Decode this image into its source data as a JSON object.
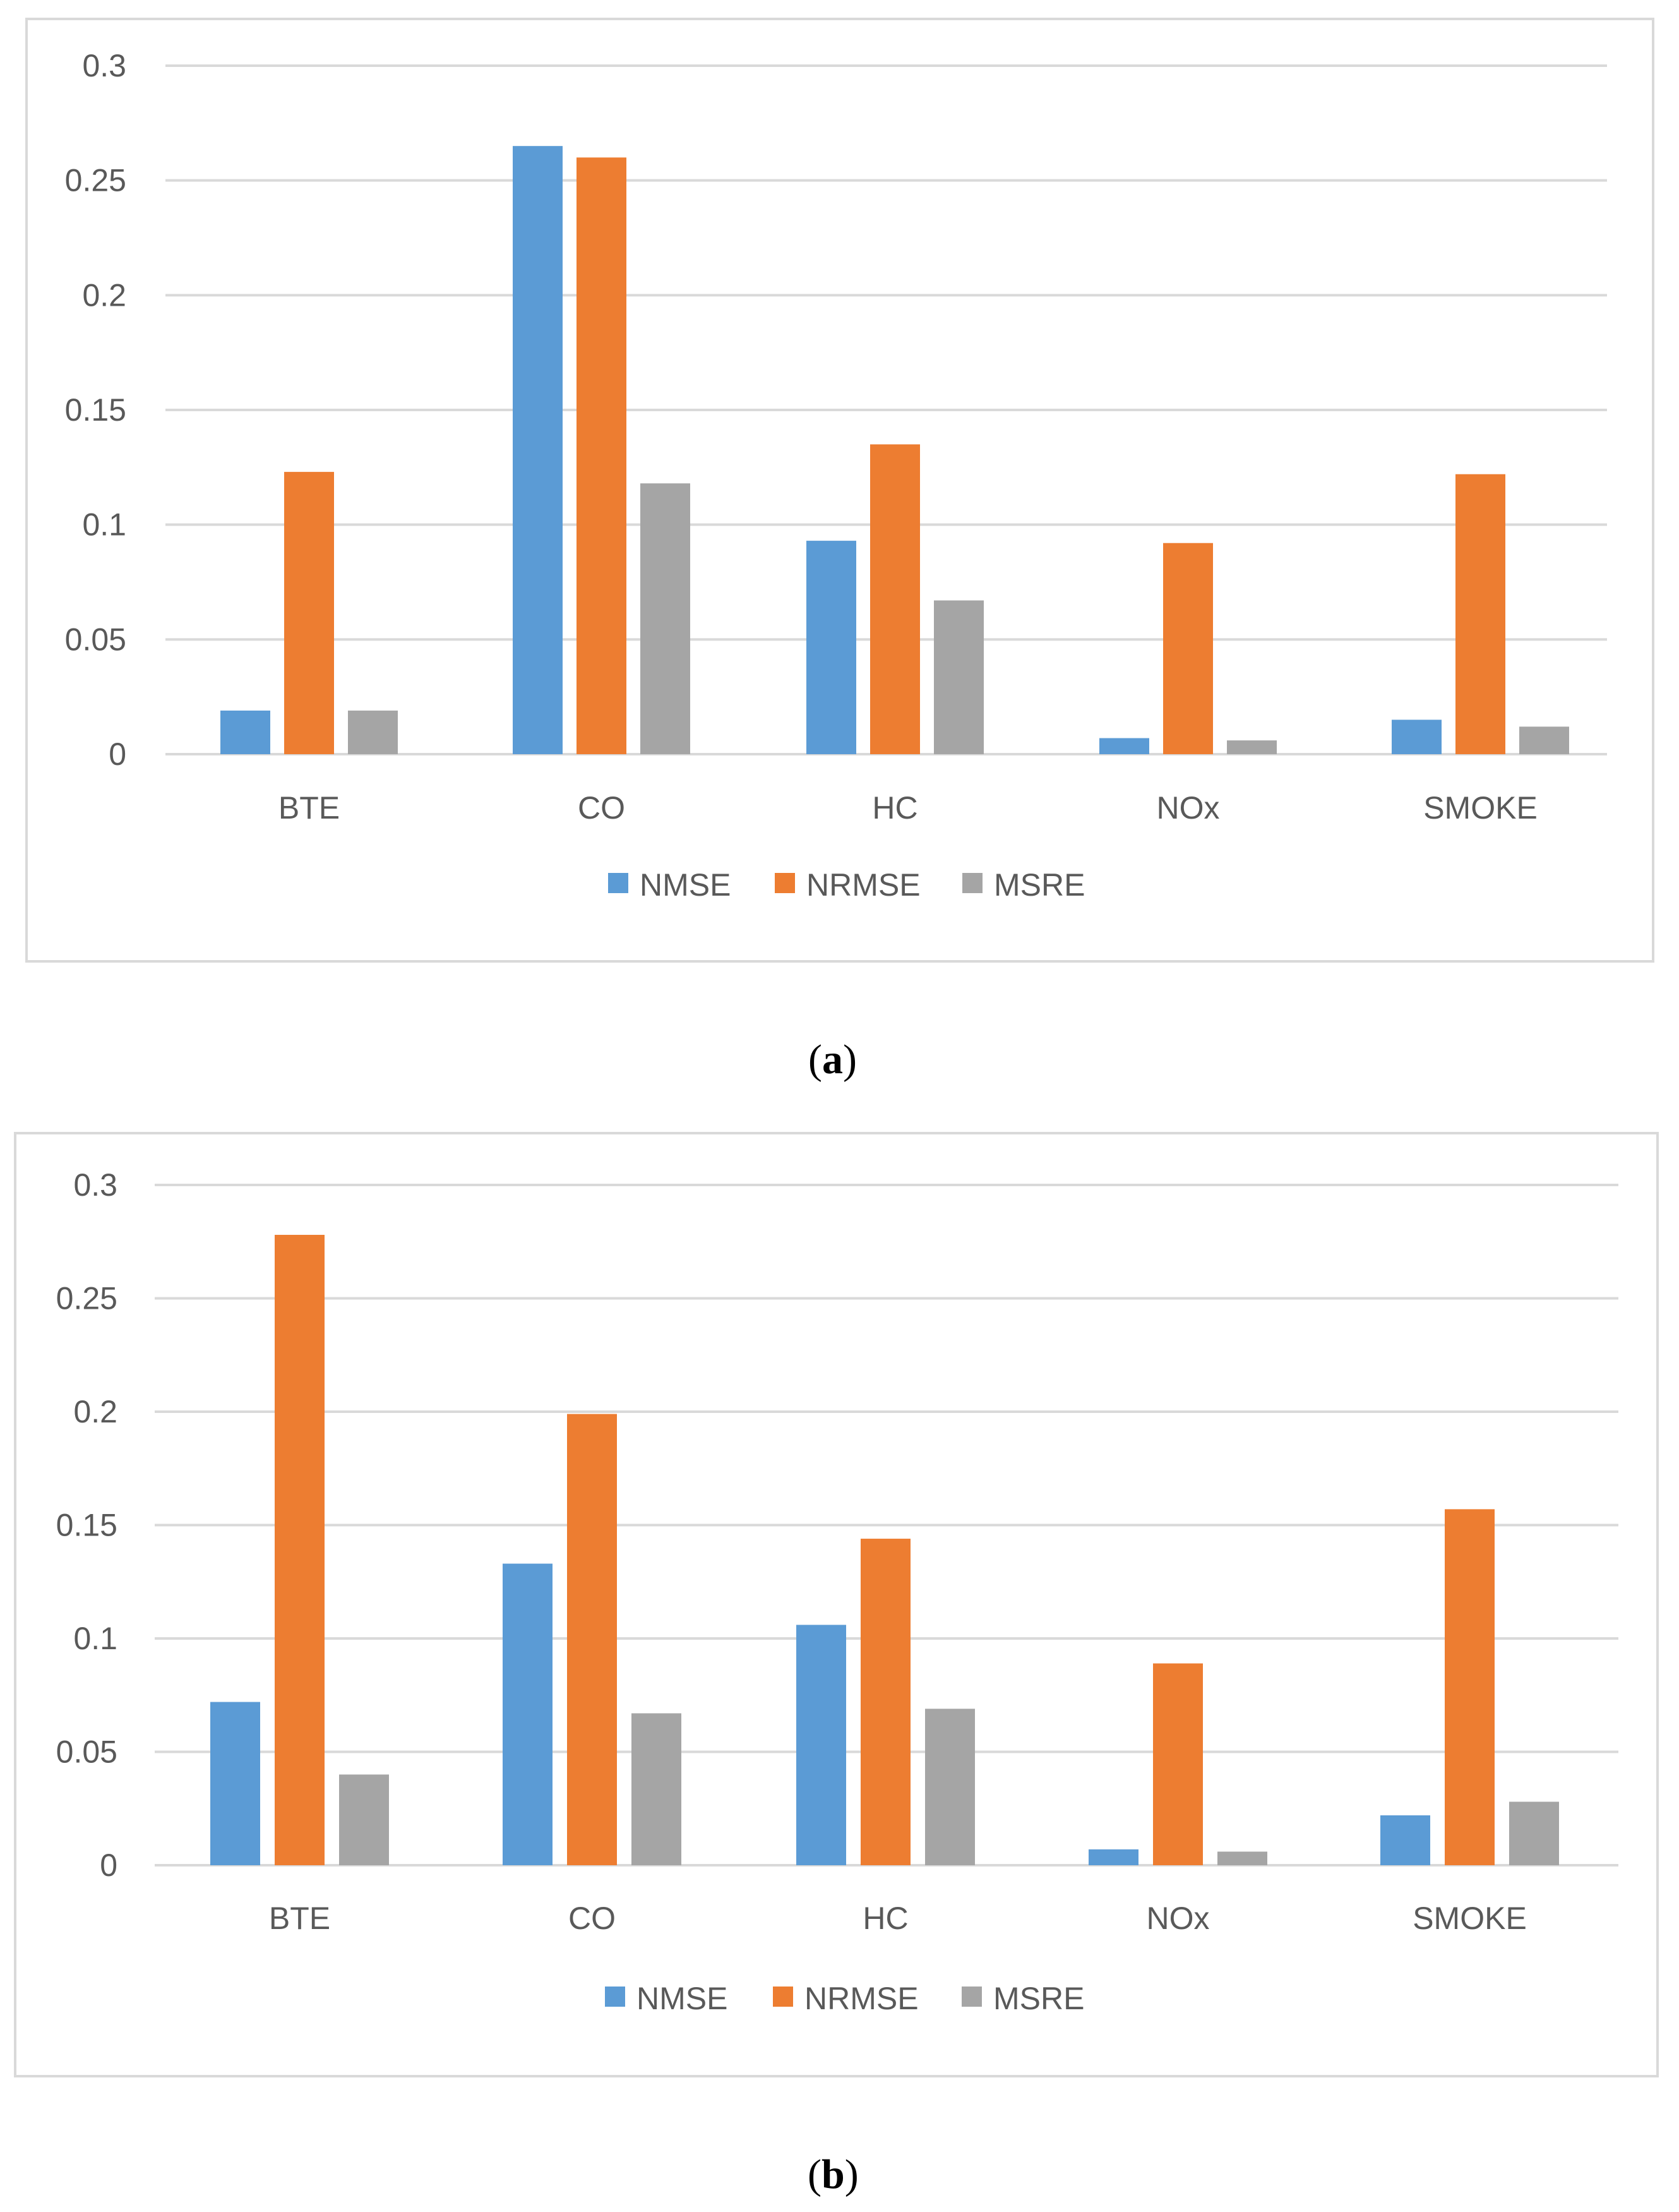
{
  "chart_data": [
    {
      "type": "bar",
      "caption_letter": "a",
      "categories": [
        "BTE",
        "CO",
        "HC",
        "NOx",
        "SMOKE"
      ],
      "series": [
        {
          "name": "NMSE",
          "color": "#5b9bd5",
          "values": [
            0.019,
            0.265,
            0.093,
            0.007,
            0.015
          ]
        },
        {
          "name": "NRMSE",
          "color": "#ed7d31",
          "values": [
            0.123,
            0.26,
            0.135,
            0.092,
            0.122
          ]
        },
        {
          "name": "MSRE",
          "color": "#a5a5a5",
          "values": [
            0.019,
            0.118,
            0.067,
            0.006,
            0.012
          ]
        }
      ],
      "y_ticks": [
        "0",
        "0.05",
        "0.1",
        "0.15",
        "0.2",
        "0.25",
        "0.3"
      ],
      "ylim": [
        0,
        0.3
      ],
      "grid": true,
      "legend_position": "bottom"
    },
    {
      "type": "bar",
      "caption_letter": "b",
      "categories": [
        "BTE",
        "CO",
        "HC",
        "NOx",
        "SMOKE"
      ],
      "series": [
        {
          "name": "NMSE",
          "color": "#5b9bd5",
          "values": [
            0.072,
            0.133,
            0.106,
            0.007,
            0.022
          ]
        },
        {
          "name": "NRMSE",
          "color": "#ed7d31",
          "values": [
            0.278,
            0.199,
            0.144,
            0.089,
            0.157
          ]
        },
        {
          "name": "MSRE",
          "color": "#a5a5a5",
          "values": [
            0.04,
            0.067,
            0.069,
            0.006,
            0.028
          ]
        }
      ],
      "y_ticks": [
        "0",
        "0.05",
        "0.1",
        "0.15",
        "0.2",
        "0.25",
        "0.3"
      ],
      "ylim": [
        0,
        0.3
      ],
      "grid": true,
      "legend_position": "bottom"
    }
  ]
}
